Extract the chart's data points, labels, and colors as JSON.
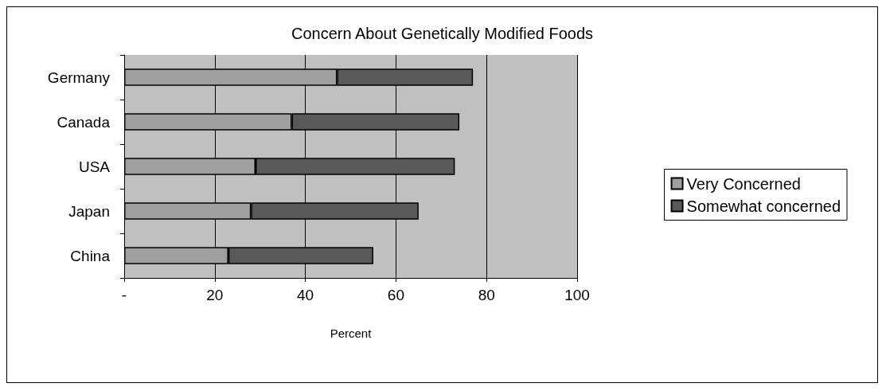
{
  "chart_data": {
    "type": "bar",
    "orientation": "horizontal",
    "stacked": true,
    "title": "Concern About Genetically Modified Foods",
    "xlabel": "Percent",
    "categories": [
      "Germany",
      "Canada",
      "USA",
      "Japan",
      "China"
    ],
    "series": [
      {
        "name": "Very Concerned",
        "color": "#a0a0a0",
        "values": [
          47,
          37,
          29,
          28,
          23
        ]
      },
      {
        "name": "Somewhat concerned",
        "color": "#595959",
        "values": [
          30,
          37,
          44,
          37,
          32
        ]
      }
    ],
    "xlim": [
      0,
      100
    ],
    "xticks": [
      {
        "value": 0,
        "label": "-"
      },
      20,
      40,
      60,
      80,
      100
    ],
    "grid": "x",
    "legend": "right"
  }
}
